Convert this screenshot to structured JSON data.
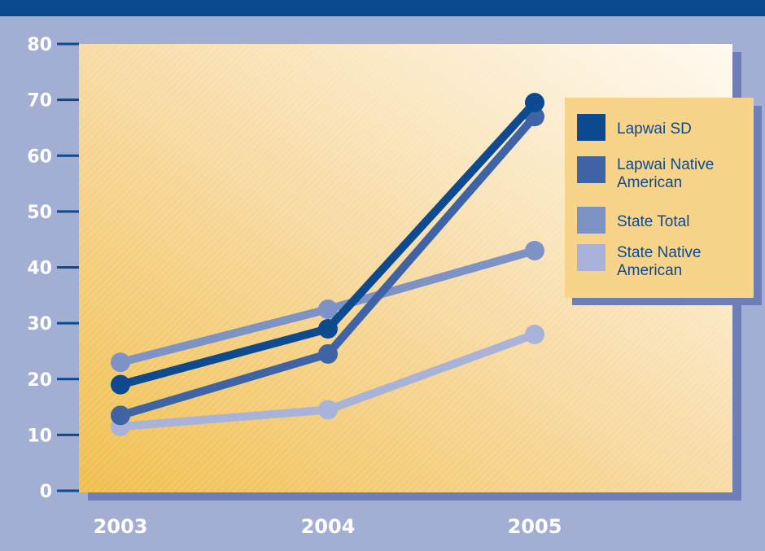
{
  "chart_data": {
    "type": "line",
    "title": "",
    "xlabel": "",
    "ylabel": "",
    "x": [
      "2003",
      "2004",
      "2005"
    ],
    "ylim": [
      0,
      80
    ],
    "yticks": [
      0,
      10,
      20,
      30,
      40,
      50,
      60,
      70,
      80
    ],
    "grid": false,
    "legend_position": "right",
    "series": [
      {
        "name": "Lapwai SD",
        "values": [
          19,
          29,
          69.5
        ],
        "color": "#0d4a8f"
      },
      {
        "name": "Lapwai Native American",
        "values": [
          13.5,
          24.5,
          67
        ],
        "color": "#3f64a6"
      },
      {
        "name": "State Total",
        "values": [
          23,
          32.5,
          43
        ],
        "color": "#7d93c6"
      },
      {
        "name": "State Native American",
        "values": [
          11.5,
          14.5,
          28
        ],
        "color": "#a9b3da"
      }
    ]
  }
}
